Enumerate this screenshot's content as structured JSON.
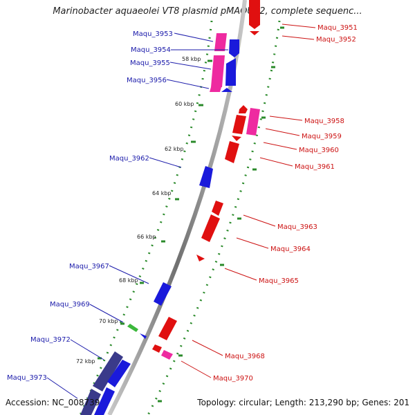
{
  "title": "Marinobacter aquaeolei VT8 plasmid pMAQU02, complete sequenc...",
  "footer": {
    "accession": "Accession: NC_008739",
    "summary": "Topology: circular; Length: 213,290 bp; Genes: 201"
  },
  "colors": {
    "forward": "#1a1adb",
    "reverse": "#e01010",
    "forward_pseudo": "#ee2aa0",
    "reverse_pseudo": "#ee2aa0",
    "rna": "#3cb83c",
    "other": "#3a3a8a",
    "backbone": "#888888",
    "gc_track": "#2a8a2a",
    "label_forward": "#1a1aaa",
    "label_reverse": "#cc1111"
  },
  "scale_ticks": [
    "58 kbp",
    "60 kbp",
    "62 kbp",
    "64 kbp",
    "66 kbp",
    "68 kbp",
    "70 kbp",
    "72 kbp"
  ],
  "genes_forward": [
    {
      "id": "Maqu_3953"
    },
    {
      "id": "Maqu_3954"
    },
    {
      "id": "Maqu_3955"
    },
    {
      "id": "Maqu_3956"
    },
    {
      "id": "Maqu_3962"
    },
    {
      "id": "Maqu_3967"
    },
    {
      "id": "Maqu_3969"
    },
    {
      "id": "Maqu_3972"
    },
    {
      "id": "Maqu_3973"
    }
  ],
  "genes_reverse": [
    {
      "id": "Maqu_3951"
    },
    {
      "id": "Maqu_3952"
    },
    {
      "id": "Maqu_3958"
    },
    {
      "id": "Maqu_3959"
    },
    {
      "id": "Maqu_3960"
    },
    {
      "id": "Maqu_3961"
    },
    {
      "id": "Maqu_3963"
    },
    {
      "id": "Maqu_3964"
    },
    {
      "id": "Maqu_3965"
    },
    {
      "id": "Maqu_3968"
    },
    {
      "id": "Maqu_3970"
    }
  ]
}
